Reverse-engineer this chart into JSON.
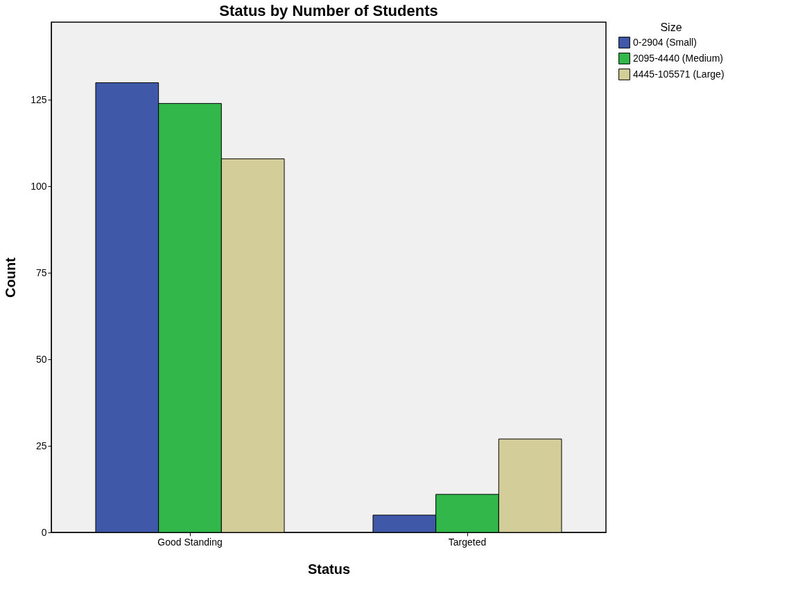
{
  "chart_data": {
    "type": "bar",
    "title": "Status by Number of Students",
    "xlabel": "Status",
    "ylabel": "Count",
    "legend_title": "Size",
    "categories": [
      "Good Standing",
      "Targeted"
    ],
    "series": [
      {
        "name": "0-2904 (Small)",
        "color": "#3f58a8",
        "values": [
          130,
          5
        ]
      },
      {
        "name": "2095-4440 (Medium)",
        "color": "#32b74a",
        "values": [
          124,
          11
        ]
      },
      {
        "name": "4445-105571 (Large)",
        "color": "#d3ce99",
        "values": [
          108,
          27
        ]
      }
    ],
    "ylim": [
      0,
      147.5
    ],
    "yticks": [
      0,
      25,
      50,
      75,
      100,
      125
    ],
    "grid": false,
    "legend": "right"
  }
}
